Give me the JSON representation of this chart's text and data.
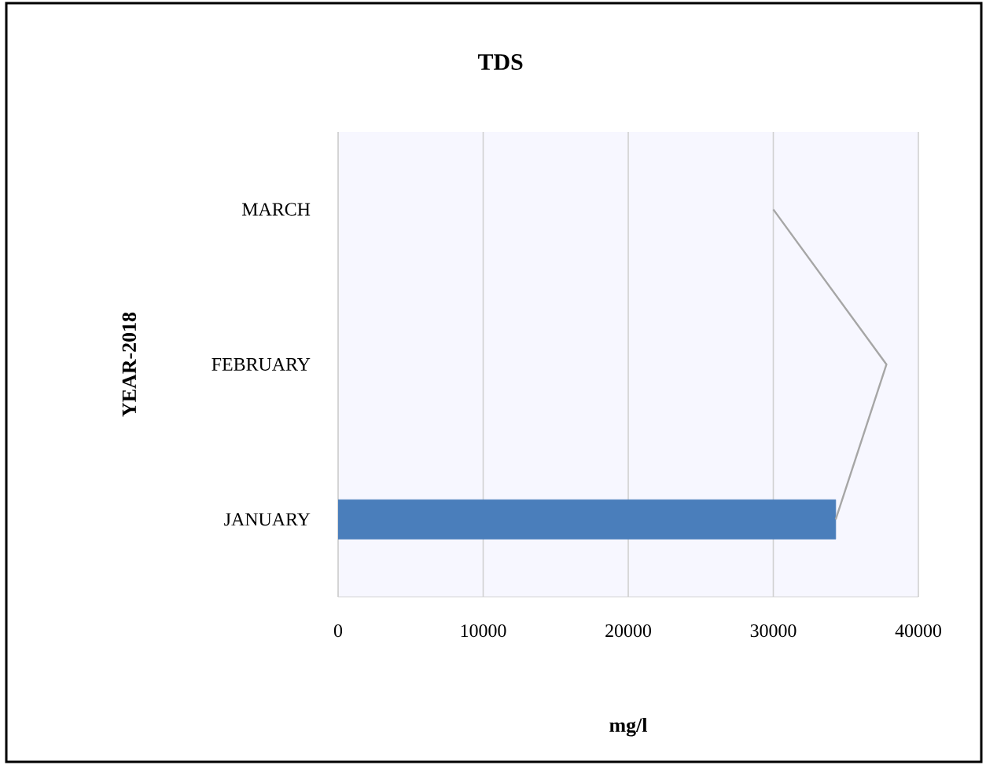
{
  "chart_data": {
    "type": "bar",
    "orientation": "horizontal",
    "title": "TDS",
    "xlabel": "mg/l",
    "ylabel": "YEAR-2018",
    "categories": [
      "MARCH",
      "FEBRUARY",
      "JANUARY"
    ],
    "series": [
      {
        "color": "#4a7ebb",
        "values": [
          null,
          null,
          34300
        ]
      },
      {
        "type": "line",
        "color": "#a6a6a6",
        "values": [
          30000,
          37800,
          34300
        ]
      }
    ],
    "xlim": [
      0,
      40000
    ],
    "xticks": [
      0,
      10000,
      20000,
      30000,
      40000
    ],
    "grid": "x"
  }
}
